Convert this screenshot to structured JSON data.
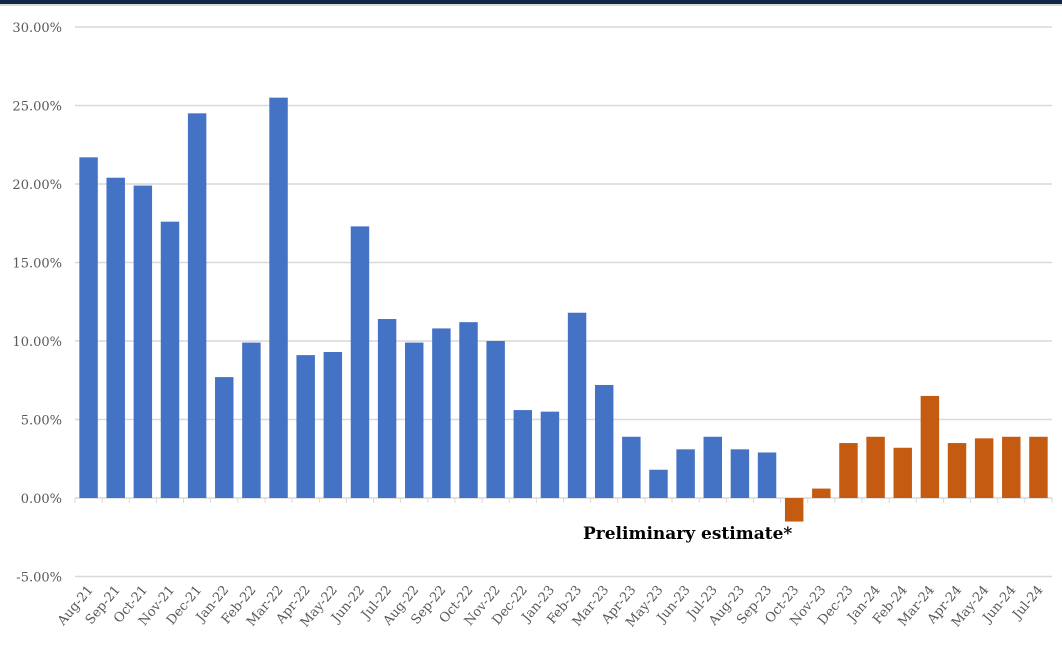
{
  "chart_data": {
    "type": "bar",
    "title": "",
    "xlabel": "",
    "ylabel": "",
    "ylim": [
      -5,
      30
    ],
    "y_ticks": [
      "-5.00%",
      "0.00%",
      "5.00%",
      "10.00%",
      "15.00%",
      "20.00%",
      "25.00%",
      "30.00%"
    ],
    "y_tick_values": [
      -5,
      0,
      5,
      10,
      15,
      20,
      25,
      30
    ],
    "grid": true,
    "categories": [
      "Aug-21",
      "Sep-21",
      "Oct-21",
      "Nov-21",
      "Dec-21",
      "Jan-22",
      "Feb-22",
      "Mar-22",
      "Apr-22",
      "May-22",
      "Jun-22",
      "Jul-22",
      "Aug-22",
      "Sep-22",
      "Oct-22",
      "Nov-22",
      "Dec-22",
      "Jan-23",
      "Feb-23",
      "Mar-23",
      "Apr-23",
      "May-23",
      "Jun-23",
      "Jul-23",
      "Aug-23",
      "Sep-23",
      "Oct-23",
      "Nov-23",
      "Dec-23",
      "Jan-24",
      "Feb-24",
      "Mar-24",
      "Apr-24",
      "May-24",
      "Jun-24",
      "Jul-24"
    ],
    "values": [
      21.7,
      20.4,
      19.9,
      17.6,
      24.5,
      7.7,
      9.9,
      25.5,
      9.1,
      9.3,
      17.3,
      11.4,
      9.9,
      10.8,
      11.2,
      10.0,
      5.6,
      5.5,
      11.8,
      7.2,
      3.9,
      1.8,
      3.1,
      3.9,
      3.1,
      2.9,
      -1.5,
      0.6,
      3.5,
      3.9,
      3.2,
      6.5,
      3.5,
      3.8,
      3.9,
      3.9
    ],
    "preliminary_from_index": 26,
    "colors": {
      "actual": "#4472c4",
      "preliminary": "#c55a11",
      "grid": "#d9d9d9"
    },
    "annotation": "Preliminary estimate*"
  }
}
